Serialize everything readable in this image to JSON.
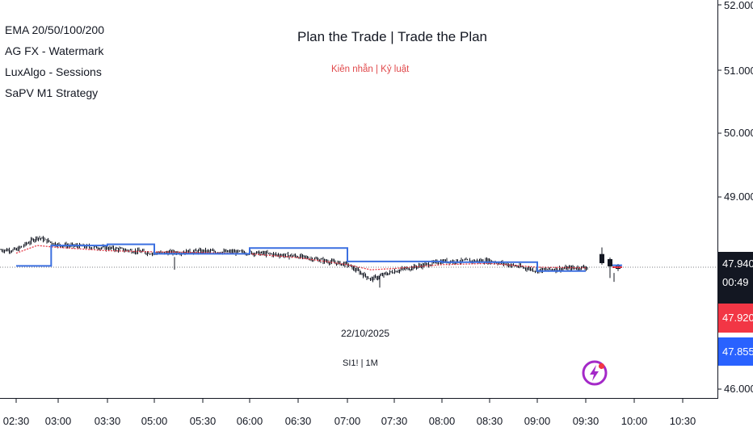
{
  "legend": [
    "EMA 20/50/100/200",
    "AG FX - Watermark",
    "LuxAlgo - Sessions",
    "SaPV M1 Strategy"
  ],
  "watermark": {
    "title": "Plan the Trade | Trade the Plan",
    "subtitle": "Kiên nhẫn | Kỷ luật",
    "date": "22/10/2025",
    "symbol": "SI1! | 1M"
  },
  "price_scale": {
    "ticks": [
      "52.000",
      "51.000",
      "50.000",
      "49.000",
      "46.000"
    ],
    "last_price": "47.940",
    "countdown": "00:49",
    "red_label": "47.920",
    "blue_label": "47.855"
  },
  "time_scale": {
    "ticks": [
      "02:30",
      "03:00",
      "03:30",
      "05:00",
      "05:30",
      "06:00",
      "06:30",
      "07:00",
      "07:30",
      "08:00",
      "08:30",
      "09:00",
      "09:30",
      "10:00",
      "10:30"
    ]
  },
  "colors": {
    "price_line": "#131722",
    "ema": "#e53946",
    "session": "#3b6fe0",
    "red_label": "#f23645",
    "blue_label": "#2962ff",
    "flash_icon": "#a429c8"
  },
  "chart_data": {
    "type": "candlestick",
    "last_price": 47.94,
    "y_ticks": [
      52.0,
      51.0,
      50.0,
      49.0,
      46.0
    ],
    "x_ticks": [
      "02:30",
      "03:00",
      "03:30",
      "05:00",
      "05:30",
      "06:00",
      "06:30",
      "07:00",
      "07:30",
      "08:00",
      "08:30",
      "09:00",
      "09:30",
      "10:00",
      "10:30"
    ],
    "price_path": [
      {
        "t": "02:30",
        "v": 48.21
      },
      {
        "t": "02:45",
        "v": 48.41
      },
      {
        "t": "03:00",
        "v": 48.29
      },
      {
        "t": "03:30",
        "v": 48.24
      },
      {
        "t": "05:00",
        "v": 48.16
      },
      {
        "t": "05:30",
        "v": 48.19
      },
      {
        "t": "06:00",
        "v": 48.17
      },
      {
        "t": "06:30",
        "v": 48.11
      },
      {
        "t": "07:00",
        "v": 47.98
      },
      {
        "t": "07:15",
        "v": 47.75
      },
      {
        "t": "07:30",
        "v": 47.88
      },
      {
        "t": "08:00",
        "v": 48.03
      },
      {
        "t": "08:30",
        "v": 48.04
      },
      {
        "t": "09:00",
        "v": 47.89
      },
      {
        "t": "09:30",
        "v": 47.94
      }
    ],
    "series": [
      {
        "name": "EMA",
        "values": [
          48.16,
          48.28,
          48.25,
          48.2,
          48.18,
          48.17,
          48.15,
          48.09,
          47.98,
          47.9,
          47.92,
          47.98,
          48.0,
          47.94,
          47.93
        ]
      }
    ],
    "session_levels": [
      {
        "from": "02:30",
        "to": "02:55",
        "v": 47.96
      },
      {
        "from": "02:55",
        "to": "03:30",
        "v": 48.28
      },
      {
        "from": "03:30",
        "to": "05:00",
        "v": 48.3
      },
      {
        "from": "05:00",
        "to": "06:00",
        "v": 48.15
      },
      {
        "from": "06:00",
        "to": "07:00",
        "v": 48.24
      },
      {
        "from": "07:00",
        "to": "08:00",
        "v": 48.03
      },
      {
        "from": "08:00",
        "to": "09:00",
        "v": 48.02
      },
      {
        "from": "09:00",
        "to": "09:30",
        "v": 47.88
      }
    ],
    "latest_candles": [
      {
        "t": "09:40",
        "o": 48.14,
        "h": 48.25,
        "l": 47.98,
        "c": 48.01
      },
      {
        "t": "09:45",
        "o": 48.06,
        "h": 48.09,
        "l": 47.77,
        "c": 47.96
      },
      {
        "t": "09:50",
        "o": 47.96,
        "h": 47.99,
        "l": 47.88,
        "c": 47.92
      }
    ]
  }
}
